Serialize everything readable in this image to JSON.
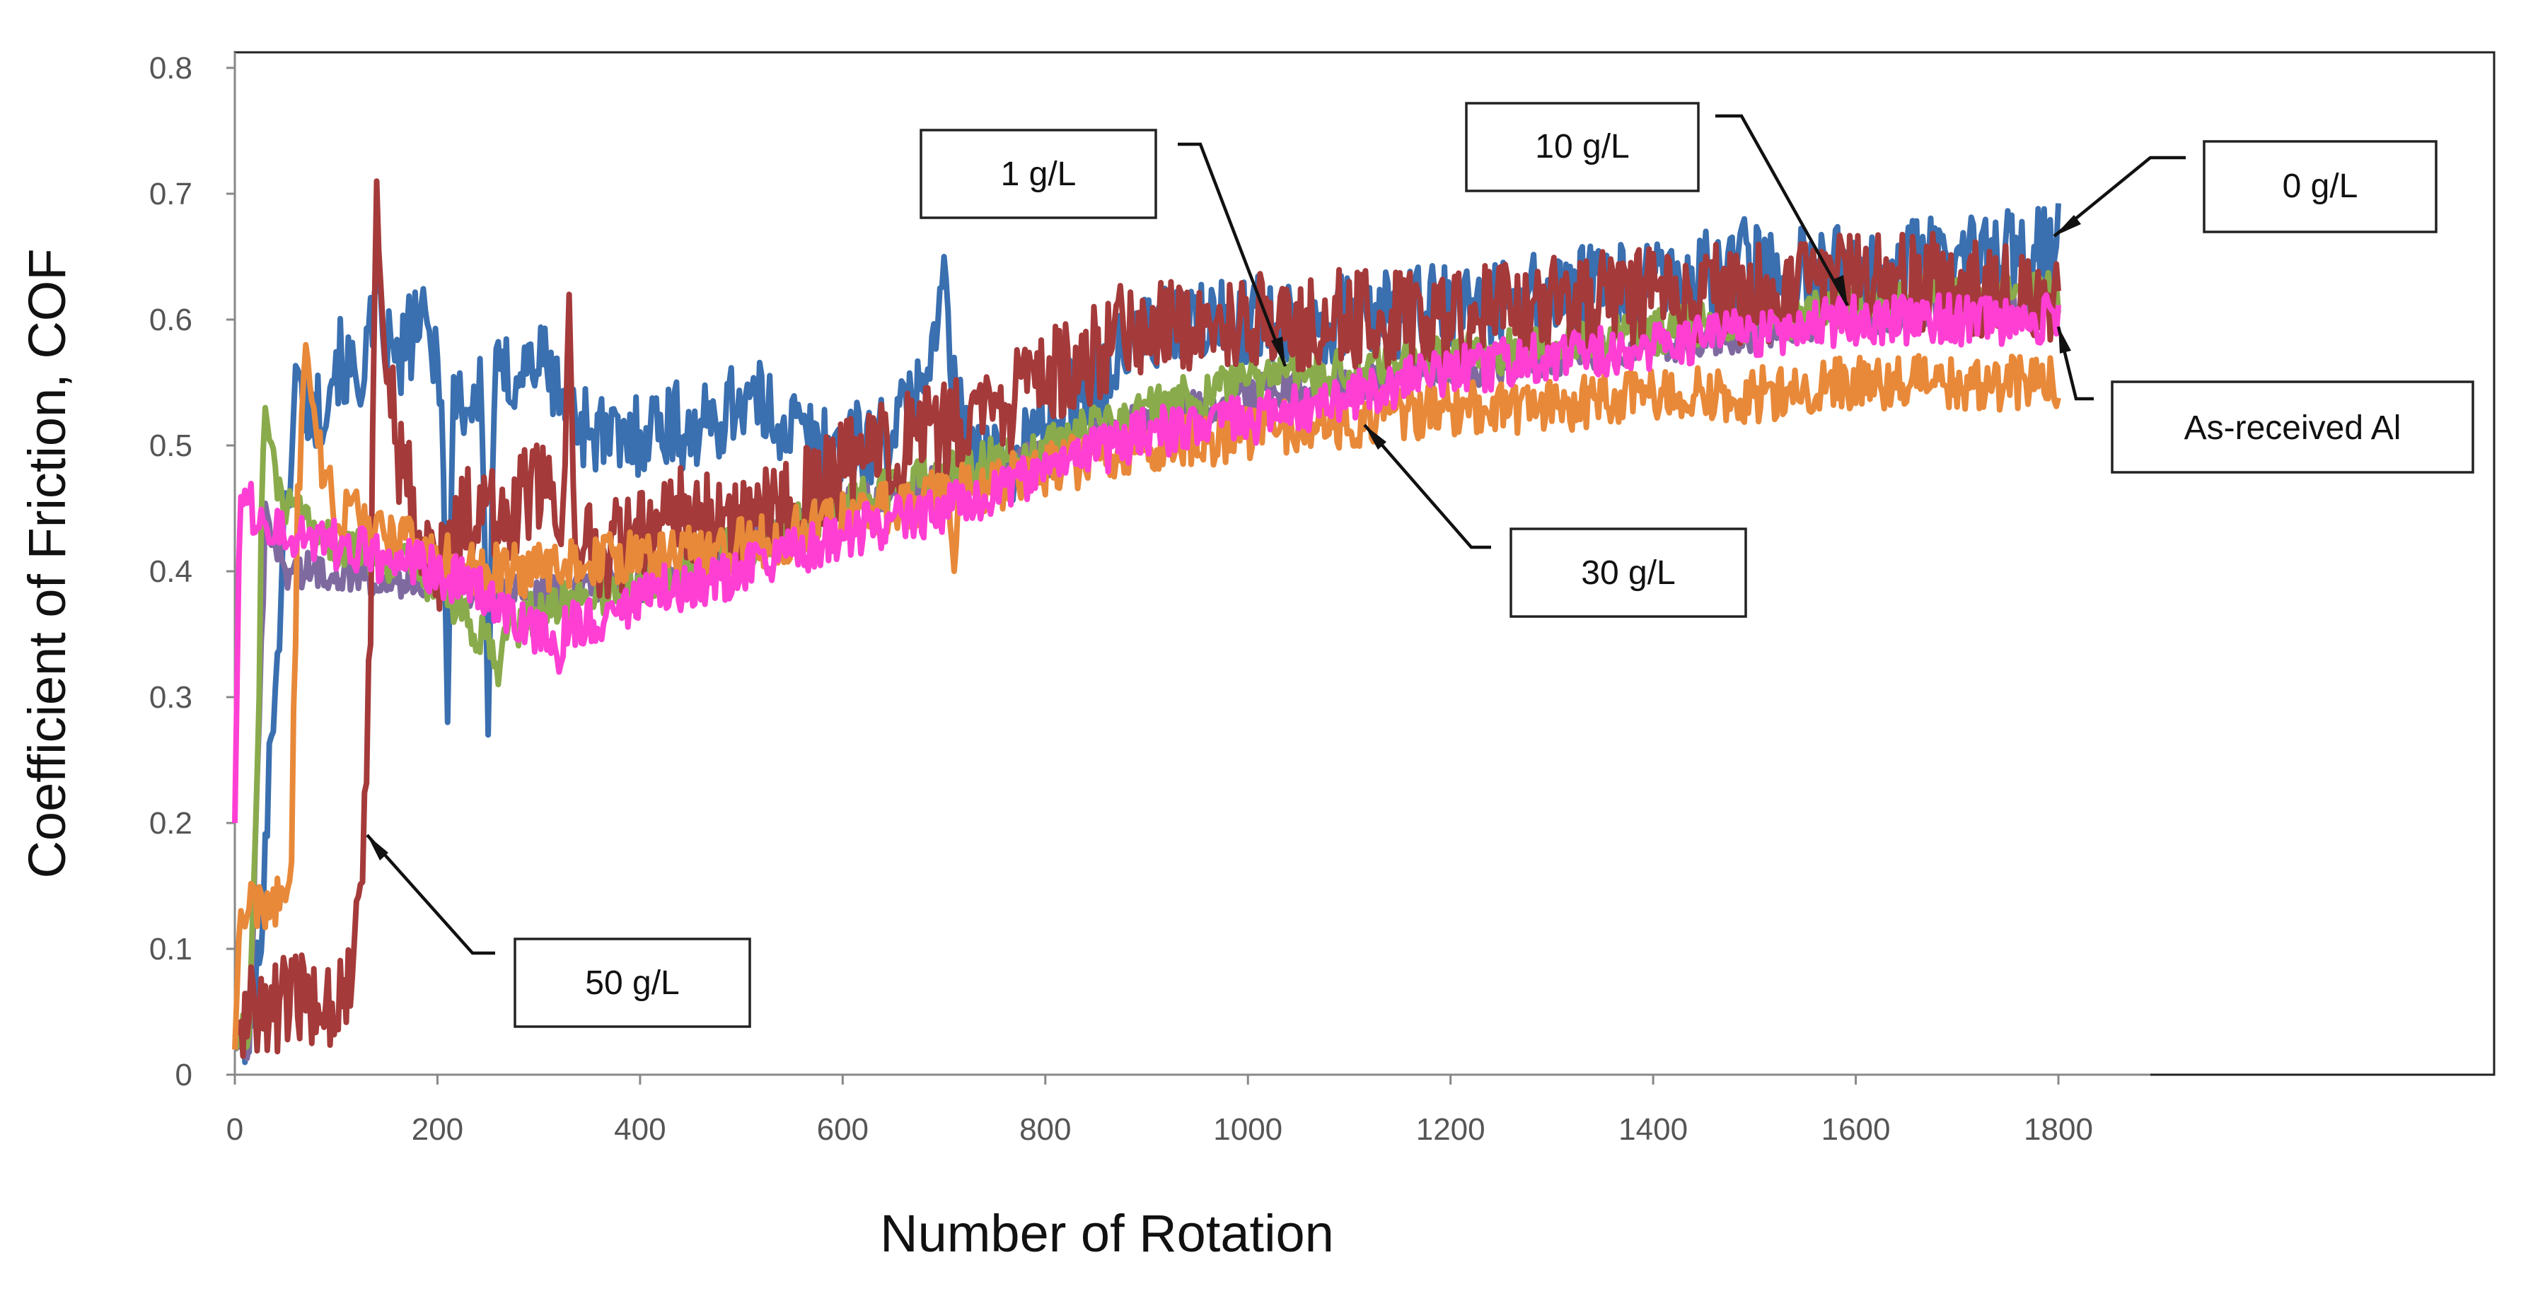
{
  "chart_data": {
    "type": "line",
    "title": "",
    "xlabel": "Number of Rotation",
    "ylabel": "Coefficient of Friction, COF",
    "xlim": [
      0,
      1800
    ],
    "ylim": [
      0,
      0.8
    ],
    "xticks": [
      "0",
      "200",
      "400",
      "600",
      "800",
      "1000",
      "1200",
      "1400",
      "1600",
      "1800"
    ],
    "yticks": [
      "0",
      "0.1",
      "0.2",
      "0.3",
      "0.4",
      "0.5",
      "0.6",
      "0.7",
      "0.8"
    ],
    "grid": false,
    "legend": "none",
    "series": [
      {
        "name": "0 g/L",
        "color": "#3a6fb0",
        "noise": 0.035,
        "points": [
          [
            0,
            0.02
          ],
          [
            20,
            0.05
          ],
          [
            40,
            0.32
          ],
          [
            60,
            0.55
          ],
          [
            80,
            0.52
          ],
          [
            100,
            0.57
          ],
          [
            120,
            0.55
          ],
          [
            140,
            0.6
          ],
          [
            160,
            0.56
          ],
          [
            180,
            0.6
          ],
          [
            200,
            0.57
          ],
          [
            230,
            0.53
          ],
          [
            260,
            0.55
          ],
          [
            300,
            0.57
          ],
          [
            340,
            0.52
          ],
          [
            380,
            0.5
          ],
          [
            420,
            0.52
          ],
          [
            460,
            0.51
          ],
          [
            500,
            0.54
          ],
          [
            540,
            0.52
          ],
          [
            580,
            0.5
          ],
          [
            620,
            0.5
          ],
          [
            660,
            0.52
          ],
          [
            700,
            0.6
          ],
          [
            720,
            0.5
          ],
          [
            760,
            0.48
          ],
          [
            800,
            0.52
          ],
          [
            860,
            0.56
          ],
          [
            900,
            0.59
          ],
          [
            1000,
            0.6
          ],
          [
            1100,
            0.6
          ],
          [
            1200,
            0.61
          ],
          [
            1300,
            0.62
          ],
          [
            1400,
            0.63
          ],
          [
            1500,
            0.64
          ],
          [
            1600,
            0.64
          ],
          [
            1700,
            0.65
          ],
          [
            1800,
            0.66
          ]
        ],
        "spikes": [
          [
            210,
            0.28
          ],
          [
            250,
            0.27
          ],
          [
            700,
            0.65
          ],
          [
            1490,
            0.68
          ]
        ]
      },
      {
        "name": "10 g/L",
        "color": "#7f6aa0",
        "noise": 0.015,
        "points": [
          [
            0,
            0.02
          ],
          [
            15,
            0.03
          ],
          [
            30,
            0.44
          ],
          [
            50,
            0.4
          ],
          [
            100,
            0.4
          ],
          [
            200,
            0.39
          ],
          [
            300,
            0.38
          ],
          [
            400,
            0.39
          ],
          [
            500,
            0.42
          ],
          [
            600,
            0.45
          ],
          [
            700,
            0.47
          ],
          [
            800,
            0.49
          ],
          [
            900,
            0.52
          ],
          [
            1000,
            0.54
          ],
          [
            1100,
            0.55
          ],
          [
            1200,
            0.56
          ],
          [
            1300,
            0.57
          ],
          [
            1400,
            0.58
          ],
          [
            1500,
            0.59
          ],
          [
            1600,
            0.6
          ],
          [
            1700,
            0.61
          ],
          [
            1800,
            0.61
          ]
        ],
        "spikes": []
      },
      {
        "name": "1 g/L",
        "color": "#8aab4c",
        "noise": 0.018,
        "points": [
          [
            0,
            0.02
          ],
          [
            15,
            0.04
          ],
          [
            30,
            0.5
          ],
          [
            50,
            0.45
          ],
          [
            100,
            0.42
          ],
          [
            150,
            0.41
          ],
          [
            200,
            0.39
          ],
          [
            250,
            0.34
          ],
          [
            300,
            0.37
          ],
          [
            400,
            0.39
          ],
          [
            500,
            0.42
          ],
          [
            600,
            0.45
          ],
          [
            700,
            0.48
          ],
          [
            800,
            0.5
          ],
          [
            900,
            0.53
          ],
          [
            1000,
            0.55
          ],
          [
            1100,
            0.56
          ],
          [
            1200,
            0.57
          ],
          [
            1300,
            0.58
          ],
          [
            1400,
            0.59
          ],
          [
            1500,
            0.6
          ],
          [
            1600,
            0.61
          ],
          [
            1700,
            0.62
          ],
          [
            1800,
            0.62
          ]
        ],
        "spikes": [
          [
            30,
            0.53
          ],
          [
            260,
            0.31
          ]
        ]
      },
      {
        "name": "50 g/L",
        "color": "#a53a3a",
        "noise": 0.04,
        "points": [
          [
            0,
            0.03
          ],
          [
            10,
            0.05
          ],
          [
            40,
            0.055
          ],
          [
            80,
            0.06
          ],
          [
            110,
            0.065
          ],
          [
            125,
            0.13
          ],
          [
            135,
            0.4
          ],
          [
            145,
            0.6
          ],
          [
            160,
            0.5
          ],
          [
            180,
            0.44
          ],
          [
            200,
            0.4
          ],
          [
            230,
            0.45
          ],
          [
            260,
            0.44
          ],
          [
            300,
            0.47
          ],
          [
            340,
            0.42
          ],
          [
            380,
            0.42
          ],
          [
            420,
            0.44
          ],
          [
            460,
            0.45
          ],
          [
            500,
            0.44
          ],
          [
            550,
            0.45
          ],
          [
            600,
            0.48
          ],
          [
            650,
            0.5
          ],
          [
            700,
            0.51
          ],
          [
            760,
            0.53
          ],
          [
            820,
            0.56
          ],
          [
            860,
            0.58
          ],
          [
            900,
            0.6
          ],
          [
            950,
            0.6
          ],
          [
            1000,
            0.6
          ],
          [
            1100,
            0.6
          ],
          [
            1200,
            0.6
          ],
          [
            1300,
            0.61
          ],
          [
            1400,
            0.62
          ],
          [
            1500,
            0.62
          ],
          [
            1600,
            0.63
          ],
          [
            1700,
            0.63
          ],
          [
            1800,
            0.61
          ]
        ],
        "spikes": [
          [
            140,
            0.71
          ],
          [
            330,
            0.62
          ]
        ]
      },
      {
        "name": "30 g/L",
        "color": "#e8893a",
        "noise": 0.022,
        "points": [
          [
            0,
            0.02
          ],
          [
            5,
            0.13
          ],
          [
            30,
            0.135
          ],
          [
            55,
            0.14
          ],
          [
            62,
            0.45
          ],
          [
            70,
            0.55
          ],
          [
            80,
            0.5
          ],
          [
            100,
            0.45
          ],
          [
            150,
            0.43
          ],
          [
            200,
            0.41
          ],
          [
            250,
            0.4
          ],
          [
            300,
            0.4
          ],
          [
            350,
            0.41
          ],
          [
            400,
            0.41
          ],
          [
            500,
            0.42
          ],
          [
            600,
            0.44
          ],
          [
            700,
            0.46
          ],
          [
            800,
            0.48
          ],
          [
            900,
            0.5
          ],
          [
            1000,
            0.51
          ],
          [
            1100,
            0.52
          ],
          [
            1200,
            0.53
          ],
          [
            1300,
            0.53
          ],
          [
            1400,
            0.54
          ],
          [
            1500,
            0.54
          ],
          [
            1600,
            0.55
          ],
          [
            1700,
            0.55
          ],
          [
            1800,
            0.55
          ]
        ],
        "spikes": [
          [
            70,
            0.58
          ],
          [
            710,
            0.4
          ]
        ]
      },
      {
        "name": "As-received Al",
        "color": "#ff3fd4",
        "noise": 0.02,
        "points": [
          [
            0,
            0.2
          ],
          [
            5,
            0.46
          ],
          [
            30,
            0.44
          ],
          [
            60,
            0.43
          ],
          [
            100,
            0.42
          ],
          [
            150,
            0.41
          ],
          [
            200,
            0.4
          ],
          [
            250,
            0.38
          ],
          [
            300,
            0.35
          ],
          [
            350,
            0.36
          ],
          [
            400,
            0.38
          ],
          [
            450,
            0.39
          ],
          [
            500,
            0.4
          ],
          [
            600,
            0.43
          ],
          [
            700,
            0.45
          ],
          [
            800,
            0.48
          ],
          [
            900,
            0.51
          ],
          [
            1000,
            0.52
          ],
          [
            1100,
            0.54
          ],
          [
            1200,
            0.56
          ],
          [
            1300,
            0.57
          ],
          [
            1400,
            0.58
          ],
          [
            1500,
            0.59
          ],
          [
            1600,
            0.6
          ],
          [
            1700,
            0.6
          ],
          [
            1800,
            0.6
          ]
        ],
        "spikes": [
          [
            320,
            0.32
          ]
        ]
      }
    ],
    "annotations": [
      {
        "id": "0gl",
        "text": "0 g/L",
        "point_to": [
          1780,
          0.66
        ]
      },
      {
        "id": "10gl",
        "text": "10 g/L",
        "point_to": [
          1600,
          0.605
        ]
      },
      {
        "id": "1gl",
        "text": "1 g/L",
        "point_to": [
          1040,
          0.56
        ]
      },
      {
        "id": "30gl",
        "text": "30 g/L",
        "point_to": [
          1110,
          0.515
        ]
      },
      {
        "id": "50gl",
        "text": "50 g/L",
        "point_to": [
          130,
          0.195
        ]
      },
      {
        "id": "asrec",
        "text": "As-received Al",
        "point_to": [
          1800,
          0.6
        ]
      }
    ]
  }
}
